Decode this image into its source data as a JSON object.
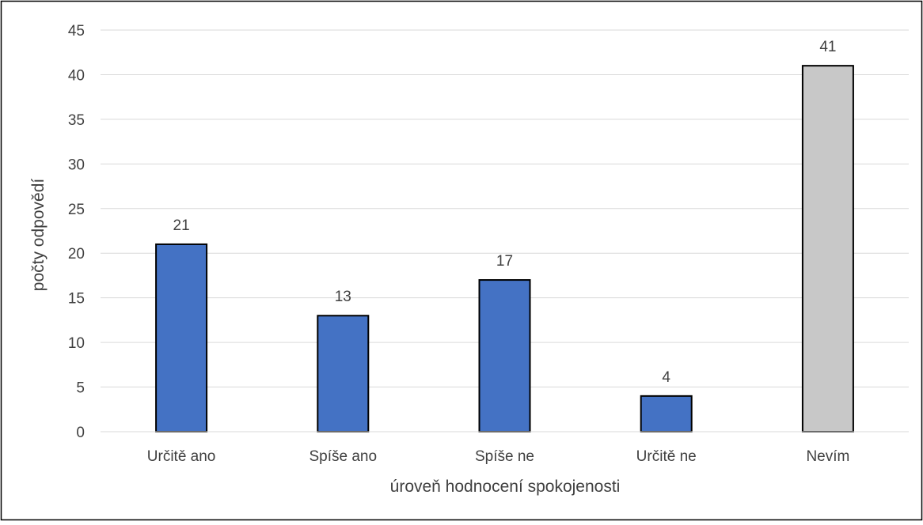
{
  "chart_data": {
    "type": "bar",
    "categories": [
      "Určitě ano",
      "Spíše ano",
      "Spíše ne",
      "Určitě ne",
      "Nevím"
    ],
    "values": [
      21,
      13,
      17,
      4,
      41
    ],
    "colors": [
      "#4472c4",
      "#4472c4",
      "#4472c4",
      "#4472c4",
      "#c8c8c8"
    ],
    "data_labels": [
      "21",
      "13",
      "17",
      "4",
      "41"
    ],
    "title": "",
    "xlabel": "úroveň hodnocení spokojenosti",
    "ylabel": "počty odpovědí",
    "ylim": [
      0,
      45
    ],
    "yticks": [
      0,
      5,
      10,
      15,
      20,
      25,
      30,
      35,
      40,
      45
    ],
    "grid": true,
    "legend": "none"
  }
}
